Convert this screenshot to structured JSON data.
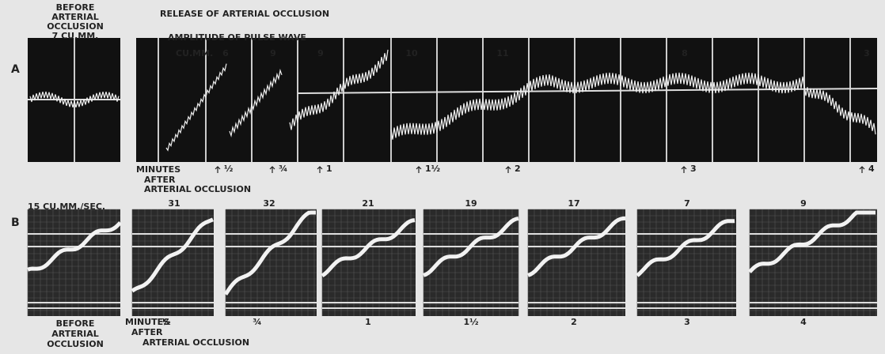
{
  "panel_a": {
    "label": "A",
    "before": [
      "BEFORE",
      "ARTERIAL",
      "OCCLUSION",
      "7 CU.MM."
    ],
    "release": "RELEASE OF ARTERIAL OCCLUSION",
    "amplitude": "AMPLITUDE OF PULSE WAVE",
    "unit": "CU.MM.",
    "amplitudes": [
      "6",
      "9",
      "9",
      "10",
      "11",
      "8",
      "3"
    ],
    "times": [
      "½",
      "¾",
      "1",
      "1½",
      "2",
      "3",
      "4"
    ],
    "minutes": [
      "MINUTES",
      "AFTER",
      "ARTERIAL OCCLUSION"
    ]
  },
  "panel_b": {
    "label": "B",
    "rate": "15 CU.MM./SEC.",
    "rates": [
      "31",
      "32",
      "21",
      "19",
      "17",
      "7",
      "9"
    ],
    "before": [
      "BEFORE",
      "ARTERIAL",
      "OCCLUSION"
    ],
    "minutes": [
      "MINUTES",
      "AFTER",
      "ARTERIAL OCCLUSION"
    ],
    "times": [
      "½",
      "¾",
      "1",
      "1½",
      "2",
      "3",
      "4"
    ]
  }
}
